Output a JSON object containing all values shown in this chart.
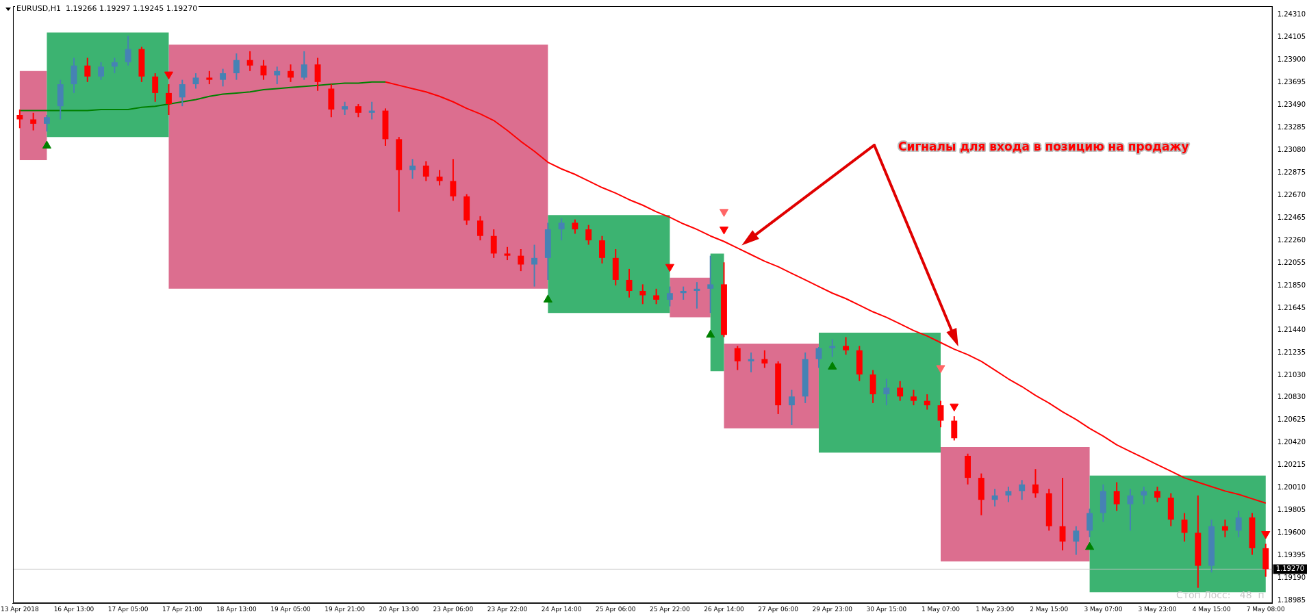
{
  "chart_data": {
    "type": "candlestick",
    "title": "EURUSD,H1  1.19266 1.19297 1.19245 1.19270",
    "annotations": [
      "Сигналы для входа в позицию на продажу",
      "Стоп Лосс:   48  п"
    ],
    "categories": [
      "13 Apr 2018",
      null,
      null,
      null,
      "16 Apr 13:00",
      null,
      null,
      null,
      "17 Apr 05:00",
      null,
      null,
      null,
      "17 Apr 21:00",
      null,
      null,
      null,
      "18 Apr 13:00",
      null,
      null,
      null,
      "19 Apr 05:00",
      null,
      null,
      null,
      "19 Apr 21:00",
      null,
      null,
      null,
      "20 Apr 13:00",
      null,
      null,
      null,
      "23 Apr 06:00",
      null,
      null,
      null,
      "23 Apr 22:00",
      null,
      null,
      null,
      "24 Apr 14:00",
      null,
      null,
      null,
      "25 Apr 06:00",
      null,
      null,
      null,
      "25 Apr 22:00",
      null,
      null,
      null,
      "26 Apr 14:00",
      null,
      null,
      null,
      "27 Apr 06:00",
      null,
      null,
      null,
      "29 Apr 23:00",
      null,
      null,
      null,
      "30 Apr 15:00",
      null,
      null,
      null,
      "1 May 07:00",
      null,
      null,
      null,
      "1 May 23:00",
      null,
      null,
      null,
      "2 May 15:00",
      null,
      null,
      null,
      "3 May 07:00",
      null,
      null,
      null,
      "3 May 23:00",
      null,
      null,
      null,
      "4 May 15:00",
      null,
      null,
      null,
      "7 May 08:00"
    ],
    "ohlc": [
      [
        1.234,
        1.2345,
        1.2328,
        1.2336
      ],
      [
        1.2336,
        1.2342,
        1.2326,
        1.2332
      ],
      [
        1.2332,
        1.234,
        1.2325,
        1.2338
      ],
      [
        1.2348,
        1.2372,
        1.2336,
        1.2368
      ],
      [
        1.2368,
        1.2392,
        1.236,
        1.2385
      ],
      [
        1.2385,
        1.2392,
        1.237,
        1.2375
      ],
      [
        1.2375,
        1.2388,
        1.2372,
        1.2384
      ],
      [
        1.2384,
        1.2392,
        1.2378,
        1.2388
      ],
      [
        1.2388,
        1.2412,
        1.2385,
        1.24
      ],
      [
        1.24,
        1.2402,
        1.237,
        1.2375
      ],
      [
        1.2375,
        1.2378,
        1.2352,
        1.236
      ],
      [
        1.236,
        1.2368,
        1.234,
        1.235
      ],
      [
        1.2356,
        1.2372,
        1.2348,
        1.2368
      ],
      [
        1.2368,
        1.2378,
        1.2364,
        1.2374
      ],
      [
        1.2374,
        1.238,
        1.2368,
        1.2372
      ],
      [
        1.2372,
        1.2382,
        1.2366,
        1.2378
      ],
      [
        1.2378,
        1.2396,
        1.2372,
        1.239
      ],
      [
        1.239,
        1.2398,
        1.238,
        1.2385
      ],
      [
        1.2385,
        1.239,
        1.2372,
        1.2376
      ],
      [
        1.2376,
        1.2384,
        1.2368,
        1.238
      ],
      [
        1.238,
        1.2386,
        1.237,
        1.2374
      ],
      [
        1.2374,
        1.2398,
        1.2372,
        1.2386
      ],
      [
        1.2386,
        1.2392,
        1.2362,
        1.237
      ],
      [
        1.2364,
        1.2368,
        1.2338,
        1.2345
      ],
      [
        1.2345,
        1.2352,
        1.234,
        1.2348
      ],
      [
        1.2348,
        1.235,
        1.2338,
        1.2342
      ],
      [
        1.2342,
        1.2352,
        1.2336,
        1.2344
      ],
      [
        1.2344,
        1.2346,
        1.2312,
        1.2318
      ],
      [
        1.2318,
        1.232,
        1.2252,
        1.229
      ],
      [
        1.229,
        1.23,
        1.2282,
        1.2294
      ],
      [
        1.2294,
        1.2298,
        1.228,
        1.2284
      ],
      [
        1.2284,
        1.229,
        1.2276,
        1.228
      ],
      [
        1.228,
        1.23,
        1.2262,
        1.2266
      ],
      [
        1.2266,
        1.2268,
        1.224,
        1.2244
      ],
      [
        1.2244,
        1.2248,
        1.2226,
        1.223
      ],
      [
        1.223,
        1.2236,
        1.221,
        1.2214
      ],
      [
        1.2214,
        1.222,
        1.2208,
        1.2212
      ],
      [
        1.2212,
        1.2218,
        1.2198,
        1.2204
      ],
      [
        1.2204,
        1.2222,
        1.2184,
        1.221
      ],
      [
        1.221,
        1.2242,
        1.219,
        1.2236
      ],
      [
        1.2236,
        1.2246,
        1.2226,
        1.2242
      ],
      [
        1.2242,
        1.2245,
        1.2232,
        1.2236
      ],
      [
        1.2236,
        1.224,
        1.2222,
        1.2226
      ],
      [
        1.2226,
        1.223,
        1.2205,
        1.221
      ],
      [
        1.221,
        1.2218,
        1.2185,
        1.219
      ],
      [
        1.219,
        1.22,
        1.2174,
        1.218
      ],
      [
        1.218,
        1.2186,
        1.2168,
        1.2176
      ],
      [
        1.2176,
        1.2182,
        1.2168,
        1.2172
      ],
      [
        1.2172,
        1.2184,
        1.2166,
        1.2178
      ],
      [
        1.2178,
        1.2184,
        1.2172,
        1.218
      ],
      [
        1.218,
        1.2188,
        1.2164,
        1.2182
      ],
      [
        1.2182,
        1.2212,
        1.216,
        1.2186
      ],
      [
        1.2186,
        1.2206,
        1.2138,
        1.214
      ],
      [
        1.2128,
        1.213,
        1.2108,
        1.2116
      ],
      [
        1.2116,
        1.2124,
        1.2106,
        1.2118
      ],
      [
        1.2118,
        1.2126,
        1.211,
        1.2114
      ],
      [
        1.2114,
        1.2116,
        1.2068,
        1.2076
      ],
      [
        1.2076,
        1.209,
        1.2058,
        1.2084
      ],
      [
        1.2084,
        1.2124,
        1.2078,
        1.2118
      ],
      [
        1.2118,
        1.2129,
        1.211,
        1.2128
      ],
      [
        1.2128,
        1.2136,
        1.212,
        1.213
      ],
      [
        1.213,
        1.2138,
        1.2122,
        1.2126
      ],
      [
        1.2126,
        1.213,
        1.2098,
        1.2104
      ],
      [
        1.2104,
        1.2108,
        1.2078,
        1.2086
      ],
      [
        1.2086,
        1.21,
        1.2076,
        1.2092
      ],
      [
        1.2092,
        1.2098,
        1.208,
        1.2084
      ],
      [
        1.2084,
        1.209,
        1.2076,
        1.208
      ],
      [
        1.208,
        1.2086,
        1.2072,
        1.2076
      ],
      [
        1.2076,
        1.208,
        1.2056,
        1.2062
      ],
      [
        1.2062,
        1.2066,
        1.2044,
        1.2046
      ],
      [
        1.203,
        1.2032,
        1.2004,
        1.201
      ],
      [
        1.201,
        1.2014,
        1.1976,
        1.199
      ],
      [
        1.199,
        1.2,
        1.1984,
        1.1994
      ],
      [
        1.1994,
        1.2002,
        1.1988,
        1.1998
      ],
      [
        1.1998,
        1.2008,
        1.199,
        1.2004
      ],
      [
        1.2004,
        1.2018,
        1.1992,
        1.1996
      ],
      [
        1.1996,
        1.2,
        1.1962,
        1.1966
      ],
      [
        1.1966,
        1.201,
        1.1944,
        1.1952
      ],
      [
        1.1952,
        1.1966,
        1.194,
        1.1962
      ],
      [
        1.1962,
        1.1982,
        1.1956,
        1.1978
      ],
      [
        1.1978,
        1.2004,
        1.197,
        1.1998
      ],
      [
        1.1998,
        1.2006,
        1.198,
        1.1986
      ],
      [
        1.1986,
        1.2,
        1.1962,
        1.1994
      ],
      [
        1.1994,
        1.2002,
        1.1986,
        1.1998
      ],
      [
        1.1998,
        1.2002,
        1.1988,
        1.1992
      ],
      [
        1.1992,
        1.1996,
        1.1966,
        1.1972
      ],
      [
        1.1972,
        1.1978,
        1.1952,
        1.196
      ],
      [
        1.196,
        1.1994,
        1.191,
        1.193
      ],
      [
        1.193,
        1.1972,
        1.1924,
        1.1966
      ],
      [
        1.1966,
        1.1972,
        1.1956,
        1.1962
      ],
      [
        1.1962,
        1.198,
        1.1956,
        1.1974
      ],
      [
        1.1974,
        1.1978,
        1.194,
        1.1946
      ],
      [
        1.1946,
        1.195,
        1.192,
        1.1927
      ]
    ],
    "colors": [
      "#ff0000",
      "#ff0000",
      "#4682b4",
      "#4682b4",
      "#4682b4",
      "#ff0000",
      "#4682b4",
      "#4682b4",
      "#4682b4",
      "#ff0000",
      "#ff0000",
      "#ff0000",
      "#4682b4",
      "#4682b4",
      "#ff0000",
      "#4682b4",
      "#4682b4",
      "#ff0000",
      "#ff0000",
      "#4682b4",
      "#ff0000",
      "#4682b4",
      "#ff0000",
      "#ff0000",
      "#4682b4",
      "#ff0000",
      "#4682b4",
      "#ff0000",
      "#ff0000",
      "#4682b4",
      "#ff0000",
      "#ff0000",
      "#ff0000",
      "#ff0000",
      "#ff0000",
      "#ff0000",
      "#ff0000",
      "#ff0000",
      "#4682b4",
      "#4682b4",
      "#4682b4",
      "#ff0000",
      "#ff0000",
      "#ff0000",
      "#ff0000",
      "#ff0000",
      "#ff0000",
      "#ff0000",
      "#4682b4",
      "#4682b4",
      "#4682b4",
      "#4682b4",
      "#ff0000",
      "#ff0000",
      "#4682b4",
      "#ff0000",
      "#ff0000",
      "#4682b4",
      "#4682b4",
      "#4682b4",
      "#4682b4",
      "#ff0000",
      "#ff0000",
      "#ff0000",
      "#4682b4",
      "#ff0000",
      "#ff0000",
      "#ff0000",
      "#ff0000",
      "#ff0000",
      "#ff0000",
      "#ff0000",
      "#4682b4",
      "#4682b4",
      "#4682b4",
      "#ff0000",
      "#ff0000",
      "#ff0000",
      "#4682b4",
      "#4682b4",
      "#4682b4",
      "#ff0000",
      "#4682b4",
      "#4682b4",
      "#ff0000",
      "#ff0000",
      "#ff0000",
      "#ff0000",
      "#4682b4",
      "#ff0000",
      "#4682b4",
      "#ff0000",
      "#ff0000"
    ],
    "series": [
      {
        "type": "area",
        "color": "#dc6e8f",
        "values": [
          null,
          null,
          null,
          null,
          null,
          null,
          null,
          null,
          null,
          null,
          null,
          null,
          null,
          null,
          null,
          null,
          null,
          null,
          null,
          null,
          null,
          null,
          null,
          null,
          null,
          null,
          null,
          null,
          null,
          null,
          null,
          null,
          null,
          null,
          null,
          null,
          null,
          null,
          null,
          null,
          null,
          null,
          null,
          null,
          null,
          null,
          null,
          null,
          null,
          null,
          null,
          null,
          null,
          null,
          null,
          null,
          null,
          null,
          null,
          null,
          null,
          null,
          null,
          null,
          null,
          null,
          null,
          null,
          null,
          null,
          null,
          null,
          null,
          null,
          null,
          null,
          null,
          null,
          null,
          null,
          null,
          null,
          null,
          null,
          null,
          null,
          null,
          null,
          null,
          null,
          null,
          null,
          null
        ],
        "lower": [
          1.2299,
          1.2299,
          1.2299,
          null,
          null,
          null,
          null,
          null,
          null,
          null,
          null,
          1.2182,
          1.2182,
          1.2182,
          1.2182,
          1.2182,
          1.2182,
          1.2182,
          1.2182,
          1.2182,
          1.2182,
          1.2182,
          1.2182,
          1.2182,
          1.2182,
          1.2182,
          1.2182,
          1.2182,
          1.2182,
          1.2182,
          1.2182,
          1.2182,
          1.2182,
          1.2182,
          1.2182,
          1.2182,
          1.2182,
          1.2182,
          1.2182,
          1.2182,
          null,
          null,
          null,
          null,
          null,
          null,
          null,
          null,
          1.2156,
          1.2156,
          1.2156,
          1.2156,
          null,
          null,
          null,
          null,
          null,
          null,
          null,
          null,
          null,
          null,
          null,
          null,
          null,
          null,
          null,
          null,
          1.1934,
          1.1934,
          1.1934,
          1.1934,
          1.1934,
          1.1934,
          1.1934,
          1.1934,
          1.1934,
          1.1934,
          1.1934,
          1.1934,
          null,
          null,
          null,
          null,
          null,
          null,
          null,
          null,
          null,
          null,
          null,
          null,
          null
        ],
        "upper": [
          1.238,
          1.238,
          1.238,
          null,
          null,
          null,
          null,
          null,
          null,
          null,
          null,
          1.2404,
          1.2404,
          1.2404,
          1.2404,
          1.2404,
          1.2404,
          1.2404,
          1.2404,
          1.2404,
          1.2404,
          1.2404,
          1.2404,
          1.2404,
          1.2404,
          1.2404,
          1.2404,
          1.2404,
          1.2404,
          1.2404,
          1.2404,
          1.2404,
          1.2404,
          1.2404,
          1.2404,
          1.2404,
          1.2404,
          1.2404,
          1.2404,
          1.2404,
          null,
          null,
          null,
          null,
          null,
          null,
          null,
          null,
          1.2192,
          1.2192,
          1.2192,
          1.2192,
          null,
          null,
          null,
          null,
          null,
          null,
          null,
          null,
          null,
          null,
          null,
          null,
          null,
          null,
          null,
          null,
          1.2038,
          1.2038,
          1.2038,
          1.2038,
          1.2038,
          1.2038,
          1.2038,
          1.2038,
          1.2038,
          1.2038,
          1.2038,
          1.2038,
          null,
          null,
          null,
          null,
          null,
          null,
          null,
          null,
          null,
          null,
          null,
          null,
          null
        ]
      },
      {
        "type": "area",
        "color": "#dc6e8f",
        "values": [
          null,
          null,
          null,
          null,
          null,
          null,
          null,
          null,
          null,
          null,
          null,
          null,
          null,
          null,
          null,
          null,
          null,
          null,
          null,
          null,
          null,
          null,
          null,
          null,
          null,
          null,
          null,
          null,
          null,
          null,
          null,
          null,
          null,
          null,
          null,
          null,
          null,
          null,
          null,
          null,
          null,
          null,
          null,
          null,
          null,
          null,
          null,
          null,
          null,
          null,
          null,
          null,
          null,
          null,
          null,
          null,
          null,
          null,
          null,
          null,
          null,
          null,
          null,
          null,
          null,
          null,
          null,
          null,
          null,
          null,
          null,
          null,
          null,
          null,
          null,
          null,
          null,
          null,
          null,
          null,
          null,
          null,
          null,
          null,
          null,
          null,
          null,
          null,
          null,
          null,
          null,
          null,
          null
        ],
        "lower": [
          null,
          null,
          null,
          null,
          null,
          null,
          null,
          null,
          null,
          null,
          null,
          null,
          null,
          null,
          null,
          null,
          null,
          null,
          null,
          null,
          null,
          null,
          null,
          null,
          null,
          null,
          null,
          null,
          null,
          null,
          null,
          null,
          null,
          null,
          null,
          null,
          null,
          null,
          null,
          null,
          null,
          null,
          null,
          null,
          null,
          null,
          null,
          null,
          null,
          null,
          null,
          null,
          1.2055,
          1.2055,
          1.2055,
          1.2055,
          1.2055,
          1.2055,
          1.2055,
          1.2055,
          null,
          null,
          null,
          null,
          null,
          null,
          null,
          null,
          null,
          null,
          null,
          null,
          null,
          null,
          null,
          null,
          null,
          null,
          null,
          null,
          null,
          null,
          null,
          null,
          null,
          null,
          null,
          null,
          null,
          null,
          null,
          null,
          null
        ],
        "upper": [
          null,
          null,
          null,
          null,
          null,
          null,
          null,
          null,
          null,
          null,
          null,
          null,
          null,
          null,
          null,
          null,
          null,
          null,
          null,
          null,
          null,
          null,
          null,
          null,
          null,
          null,
          null,
          null,
          null,
          null,
          null,
          null,
          null,
          null,
          null,
          null,
          null,
          null,
          null,
          null,
          null,
          null,
          null,
          null,
          null,
          null,
          null,
          null,
          null,
          null,
          null,
          null,
          1.2132,
          1.2132,
          1.2132,
          1.2132,
          1.2132,
          1.2132,
          1.2132,
          1.2132,
          null,
          null,
          null,
          null,
          null,
          null,
          null,
          null,
          null,
          null,
          null,
          null,
          null,
          null,
          null,
          null,
          null,
          null,
          null,
          null,
          null,
          null,
          null,
          null,
          null,
          null,
          null,
          null,
          null,
          null,
          null,
          null,
          null
        ]
      },
      {
        "type": "area",
        "color": "#3cb371",
        "values": [
          null,
          null,
          null,
          null,
          null,
          null,
          null,
          null,
          null,
          null,
          null,
          null,
          null,
          null,
          null,
          null,
          null,
          null,
          null,
          null,
          null,
          null,
          null,
          null,
          null,
          null,
          null,
          null,
          null,
          null,
          null,
          null,
          null,
          null,
          null,
          null,
          null,
          null,
          null,
          null,
          null,
          null,
          null,
          null,
          null,
          null,
          null,
          null,
          null,
          null,
          null,
          null,
          null,
          null,
          null,
          null,
          null,
          null,
          null,
          null,
          null,
          null,
          null,
          null,
          null,
          null,
          null,
          null,
          null,
          null,
          null,
          null,
          null,
          null,
          null,
          null,
          null,
          null,
          null,
          null,
          null,
          null,
          null,
          null,
          null,
          null,
          null,
          null,
          null,
          null,
          null,
          null,
          null
        ],
        "lower": [
          null,
          null,
          1.232,
          1.232,
          1.232,
          1.232,
          1.232,
          1.232,
          1.232,
          1.232,
          1.232,
          1.232,
          null,
          null,
          null,
          null,
          null,
          null,
          null,
          null,
          null,
          null,
          null,
          null,
          null,
          null,
          null,
          null,
          null,
          null,
          null,
          null,
          null,
          null,
          null,
          null,
          null,
          null,
          null,
          1.216,
          1.216,
          1.216,
          1.216,
          1.216,
          1.216,
          1.216,
          1.216,
          1.216,
          1.216,
          null,
          null,
          1.2107,
          1.2107,
          null,
          null,
          null,
          null,
          null,
          null,
          1.2033,
          1.2033,
          1.2033,
          1.2033,
          1.2033,
          1.2033,
          1.2033,
          1.2033,
          1.2033,
          1.2033,
          null,
          null,
          null,
          null,
          null,
          null,
          null,
          null,
          null,
          null,
          1.1906,
          1.1906,
          1.1906,
          1.1906,
          1.1906,
          1.1906,
          1.1906,
          1.1906,
          1.1906,
          1.1906,
          1.1906,
          1.1906,
          1.1906,
          1.1906
        ],
        "upper": [
          null,
          null,
          1.2415,
          1.2415,
          1.2415,
          1.2415,
          1.2415,
          1.2415,
          1.2415,
          1.2415,
          1.2415,
          1.2415,
          null,
          null,
          null,
          null,
          null,
          null,
          null,
          null,
          null,
          null,
          null,
          null,
          null,
          null,
          null,
          null,
          null,
          null,
          null,
          null,
          null,
          null,
          null,
          null,
          null,
          null,
          null,
          1.2249,
          1.2249,
          1.2249,
          1.2249,
          1.2249,
          1.2249,
          1.2249,
          1.2249,
          1.2249,
          1.2249,
          null,
          null,
          1.2214,
          1.2214,
          null,
          null,
          null,
          null,
          null,
          null,
          1.2142,
          1.2142,
          1.2142,
          1.2142,
          1.2142,
          1.2142,
          1.2142,
          1.2142,
          1.2142,
          1.2142,
          null,
          null,
          null,
          null,
          null,
          null,
          null,
          null,
          null,
          null,
          1.2012,
          1.2012,
          1.2012,
          1.2012,
          1.2012,
          1.2012,
          1.2012,
          1.2012,
          1.2012,
          1.2012,
          1.2012,
          1.2012,
          1.2012,
          1.2012
        ]
      },
      {
        "type": "line",
        "color": "#008000",
        "values": [
          1.2344,
          1.2344,
          1.2344,
          1.2344,
          1.2344,
          1.2344,
          1.2345,
          1.2345,
          1.2345,
          1.2347,
          1.2348,
          1.235,
          1.2352,
          1.2354,
          1.2357,
          1.2359,
          1.236,
          1.2361,
          1.2363,
          1.2364,
          1.2365,
          1.2366,
          1.2367,
          1.2368,
          1.2369,
          1.2369,
          1.237,
          1.237,
          null,
          null,
          null,
          null,
          null,
          null,
          null,
          null,
          null,
          null,
          null,
          null,
          null,
          null,
          null,
          null,
          null,
          null,
          null,
          null,
          null,
          null,
          null,
          null,
          null,
          null,
          null,
          null,
          null,
          null,
          null,
          null,
          null,
          null,
          null,
          null,
          null,
          null,
          null,
          null,
          null,
          null,
          null,
          null,
          null,
          null,
          null,
          null,
          null,
          null,
          null,
          null,
          null,
          null,
          null,
          null,
          null,
          null,
          null,
          null,
          null,
          null,
          null,
          null,
          null
        ]
      },
      {
        "type": "line",
        "color": "#ff0000",
        "values": [
          null,
          null,
          null,
          null,
          null,
          null,
          null,
          null,
          null,
          null,
          null,
          null,
          null,
          null,
          null,
          null,
          null,
          null,
          null,
          null,
          null,
          null,
          null,
          null,
          null,
          null,
          null,
          1.237,
          1.2367,
          1.2364,
          1.2361,
          1.2357,
          1.2352,
          1.2346,
          1.2341,
          1.2335,
          1.2326,
          1.2316,
          1.2307,
          1.2297,
          1.2291,
          1.2286,
          1.228,
          1.2274,
          1.2269,
          1.2263,
          1.2258,
          1.2252,
          1.2247,
          1.2241,
          1.2236,
          1.223,
          1.2225,
          1.2219,
          1.2213,
          1.2207,
          1.2202,
          1.2196,
          1.219,
          1.2184,
          1.2178,
          1.2173,
          1.2167,
          1.2161,
          1.2156,
          1.215,
          1.2144,
          1.2139,
          1.2133,
          1.2127,
          1.2122,
          1.2116,
          1.2108,
          1.21,
          1.2093,
          1.2085,
          1.2078,
          1.207,
          1.2063,
          1.2055,
          1.2048,
          1.204,
          1.2034,
          1.2028,
          1.2022,
          1.2016,
          1.201,
          1.2006,
          1.2002,
          1.1998,
          1.1995,
          1.1991,
          1.1987
        ]
      },
      {
        "type": "scatter",
        "color": "#008000",
        "marker": "triangle",
        "values": [
          null,
          null,
          1.2312,
          null,
          null,
          null,
          null,
          null,
          null,
          null,
          null,
          null,
          null,
          null,
          null,
          null,
          null,
          null,
          null,
          null,
          null,
          null,
          null,
          null,
          null,
          null,
          null,
          null,
          null,
          null,
          null,
          null,
          null,
          null,
          null,
          null,
          null,
          null,
          null,
          1.2172,
          null,
          null,
          null,
          null,
          null,
          null,
          null,
          null,
          null,
          null,
          null,
          1.214,
          null,
          null,
          null,
          null,
          null,
          null,
          null,
          null,
          1.2111,
          null,
          null,
          null,
          null,
          null,
          null,
          null,
          null,
          null,
          null,
          null,
          null,
          null,
          null,
          null,
          null,
          null,
          null,
          1.1947,
          null,
          null,
          null,
          null,
          null,
          null,
          null,
          null,
          null,
          null,
          null,
          null,
          null
        ]
      },
      {
        "type": "scatter",
        "color": "#ff0000",
        "marker": "triangle",
        "values": [
          null,
          null,
          null,
          null,
          null,
          null,
          null,
          null,
          null,
          null,
          null,
          1.2377,
          null,
          null,
          null,
          null,
          null,
          null,
          null,
          null,
          null,
          null,
          null,
          null,
          null,
          null,
          null,
          null,
          null,
          null,
          null,
          null,
          null,
          null,
          null,
          null,
          null,
          null,
          null,
          null,
          null,
          null,
          null,
          null,
          null,
          null,
          null,
          null,
          1.2202,
          null,
          null,
          null,
          1.2236,
          null,
          null,
          null,
          null,
          null,
          null,
          null,
          null,
          null,
          null,
          null,
          null,
          null,
          null,
          null,
          null,
          1.2075,
          null,
          null,
          null,
          null,
          null,
          null,
          null,
          null,
          null,
          null,
          null,
          null,
          null,
          null,
          null,
          null,
          null,
          null,
          null,
          null,
          null,
          null,
          1.1959
        ]
      },
      {
        "type": "scatter",
        "color": "#ff6666",
        "marker": "triangle",
        "values": [
          null,
          null,
          null,
          null,
          null,
          null,
          null,
          null,
          null,
          null,
          null,
          null,
          null,
          null,
          null,
          null,
          null,
          null,
          null,
          null,
          null,
          null,
          null,
          null,
          null,
          null,
          null,
          null,
          null,
          null,
          null,
          null,
          null,
          null,
          null,
          null,
          null,
          null,
          null,
          null,
          null,
          null,
          null,
          null,
          null,
          null,
          null,
          null,
          null,
          null,
          null,
          null,
          1.2252,
          null,
          null,
          null,
          null,
          null,
          null,
          null,
          null,
          null,
          null,
          null,
          null,
          null,
          null,
          null,
          1.211,
          null,
          null,
          null,
          null,
          null,
          null,
          null,
          null,
          null,
          null,
          null,
          null,
          null,
          null,
          null,
          null,
          null,
          null,
          null,
          null,
          null,
          null,
          null,
          null
        ]
      }
    ],
    "ylim": [
      1.1896,
      1.2439
    ],
    "yticks": [
      {
        "value": 1.2431,
        "label": "1.24310"
      },
      {
        "value": 1.24105,
        "label": "1.24105"
      },
      {
        "value": 1.239,
        "label": "1.23900"
      },
      {
        "value": 1.23695,
        "label": "1.23695"
      },
      {
        "value": 1.2349,
        "label": "1.23490"
      },
      {
        "value": 1.23285,
        "label": "1.23285"
      },
      {
        "value": 1.2308,
        "label": "1.23080"
      },
      {
        "value": 1.22875,
        "label": "1.22875"
      },
      {
        "value": 1.2267,
        "label": "1.22670"
      },
      {
        "value": 1.22465,
        "label": "1.22465"
      },
      {
        "value": 1.2226,
        "label": "1.22260"
      },
      {
        "value": 1.22055,
        "label": "1.22055"
      },
      {
        "value": 1.2185,
        "label": "1.21850"
      },
      {
        "value": 1.21645,
        "label": "1.21645"
      },
      {
        "value": 1.2144,
        "label": "1.21440"
      },
      {
        "value": 1.21235,
        "label": "1.21235"
      },
      {
        "value": 1.2103,
        "label": "1.21030"
      },
      {
        "value": 1.2083,
        "label": "1.20830"
      },
      {
        "value": 1.20625,
        "label": "1.20625"
      },
      {
        "value": 1.2042,
        "label": "1.20420"
      },
      {
        "value": 1.20215,
        "label": "1.20215"
      },
      {
        "value": 1.2001,
        "label": "1.20010"
      },
      {
        "value": 1.19805,
        "label": "1.19805"
      },
      {
        "value": 1.196,
        "label": "1.19600"
      },
      {
        "value": 1.19395,
        "label": "1.19395"
      },
      {
        "value": 1.1919,
        "label": "1.19190"
      },
      {
        "value": 1.18985,
        "label": "1.18985"
      }
    ],
    "ref_lines": [
      {
        "axis": "y",
        "value": 1.1927,
        "label": "1.19270",
        "color": "#c0c0c0"
      }
    ]
  }
}
